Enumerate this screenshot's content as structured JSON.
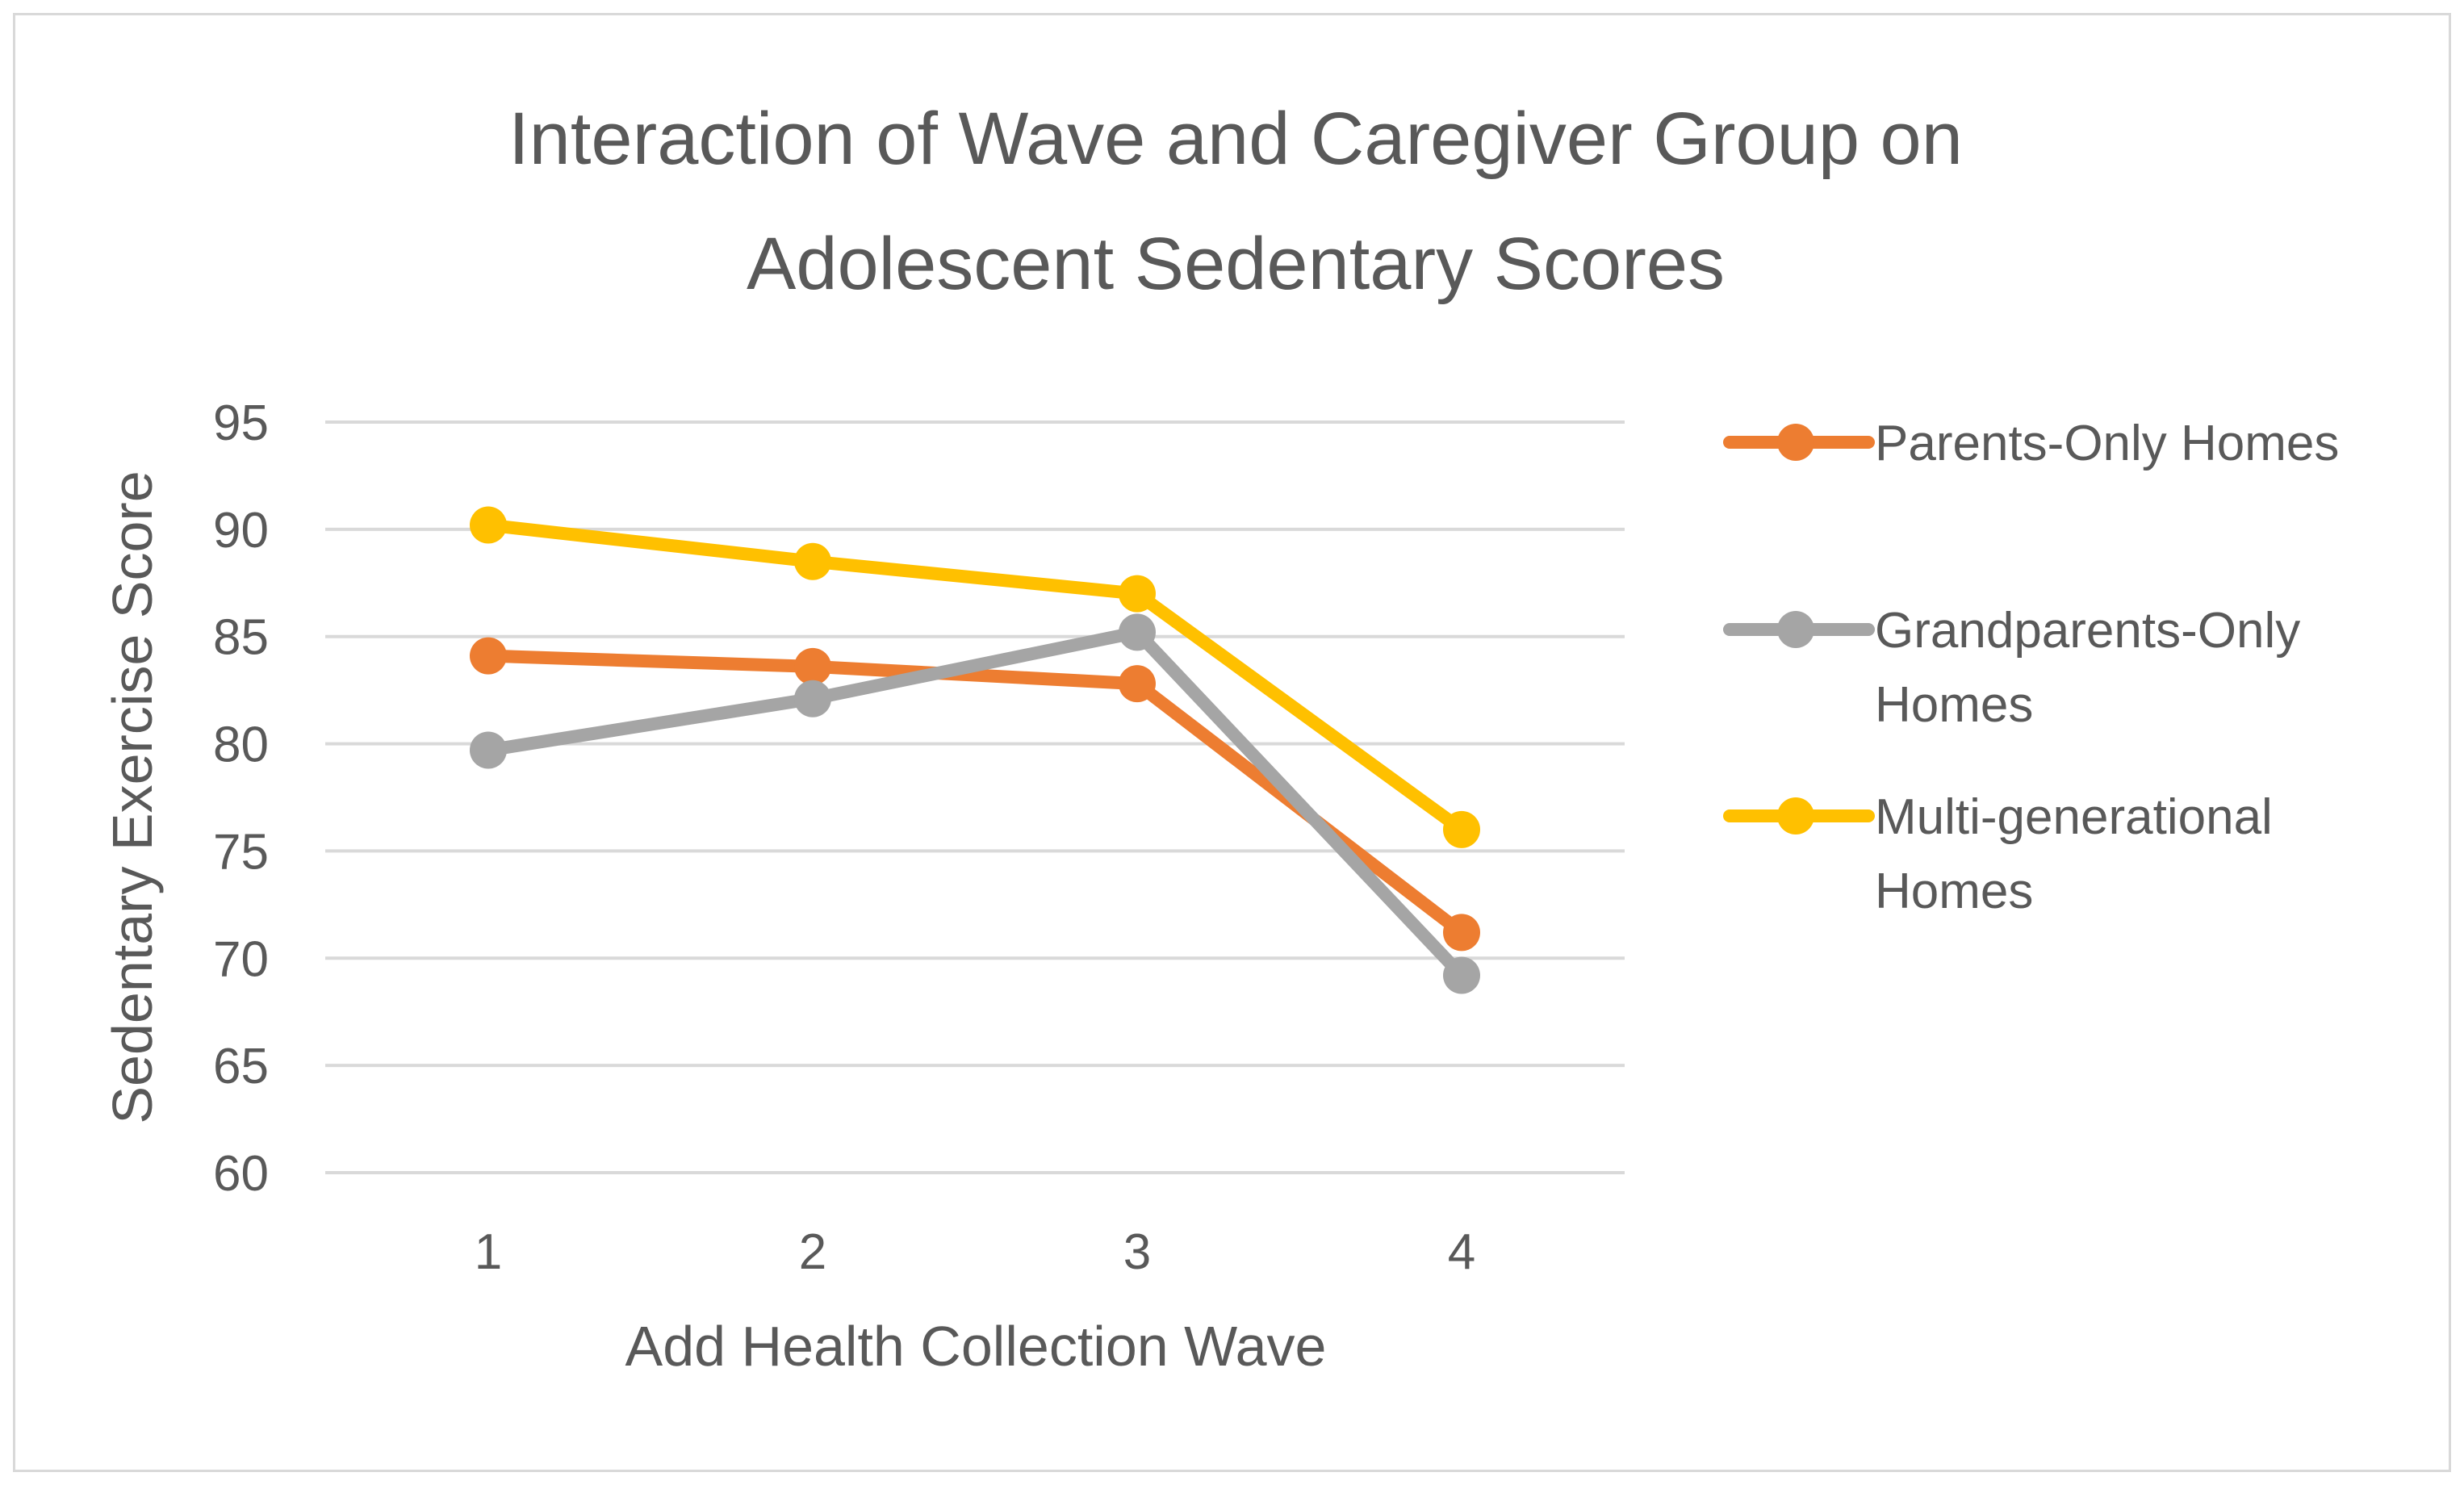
{
  "chart_data": {
    "type": "line",
    "title": "Interaction of Wave and Caregiver Group on Adolescent Sedentary Scores",
    "title_lines": [
      "Interaction of Wave and Caregiver Group on",
      "Adolescent Sedentary Scores"
    ],
    "xlabel": "Add Health Collection Wave",
    "ylabel": "Sedentary Exercise Score",
    "categories": [
      "1",
      "2",
      "3",
      "4"
    ],
    "ylim": [
      60,
      95
    ],
    "yticks": [
      60,
      65,
      70,
      75,
      80,
      85,
      90,
      95
    ],
    "grid": true,
    "legend_position": "right",
    "series": [
      {
        "name": "Parents-Only Homes",
        "legend_lines": [
          "Parents-Only Homes"
        ],
        "color": "#ed7d31",
        "values": [
          84.1,
          83.6,
          82.8,
          71.2
        ]
      },
      {
        "name": "Grandparents-Only Homes",
        "legend_lines": [
          "Grandparents-Only",
          "Homes"
        ],
        "color": "#a5a5a5",
        "values": [
          79.7,
          82.1,
          85.2,
          69.2
        ]
      },
      {
        "name": "Multi-generational Homes",
        "legend_lines": [
          "Multi-generational",
          "Homes"
        ],
        "color": "#ffc000",
        "values": [
          90.2,
          88.5,
          87.0,
          76.0
        ]
      }
    ]
  }
}
